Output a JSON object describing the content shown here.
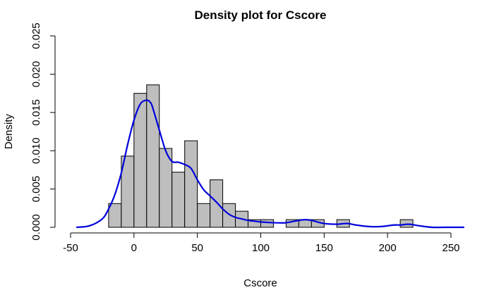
{
  "chart_data": {
    "type": "histogram",
    "title": "Density plot for Cscore",
    "xlabel": "Cscore",
    "ylabel": "Density",
    "xlim": [
      -50,
      260
    ],
    "ylim": [
      0,
      0.025
    ],
    "x_ticks": [
      -50,
      0,
      50,
      100,
      150,
      200,
      250
    ],
    "x_tick_labels": [
      "-50",
      "0",
      "50",
      "100",
      "150",
      "200",
      "250"
    ],
    "y_ticks": [
      0,
      0.005,
      0.01,
      0.015,
      0.02,
      0.025
    ],
    "y_tick_labels": [
      "0.000",
      "0.005",
      "0.010",
      "0.015",
      "0.020",
      "0.025"
    ],
    "bin_width": 10,
    "bins": [
      {
        "x0": -20,
        "x1": -10,
        "density": 0.0031
      },
      {
        "x0": -10,
        "x1": 0,
        "density": 0.0093
      },
      {
        "x0": 0,
        "x1": 10,
        "density": 0.0175
      },
      {
        "x0": 10,
        "x1": 20,
        "density": 0.0186
      },
      {
        "x0": 20,
        "x1": 30,
        "density": 0.0103
      },
      {
        "x0": 30,
        "x1": 40,
        "density": 0.0072
      },
      {
        "x0": 40,
        "x1": 50,
        "density": 0.0113
      },
      {
        "x0": 50,
        "x1": 60,
        "density": 0.0031
      },
      {
        "x0": 60,
        "x1": 70,
        "density": 0.0062
      },
      {
        "x0": 70,
        "x1": 80,
        "density": 0.0031
      },
      {
        "x0": 80,
        "x1": 90,
        "density": 0.0021
      },
      {
        "x0": 90,
        "x1": 100,
        "density": 0.001
      },
      {
        "x0": 100,
        "x1": 110,
        "density": 0.001
      },
      {
        "x0": 110,
        "x1": 120,
        "density": 0.0
      },
      {
        "x0": 120,
        "x1": 130,
        "density": 0.001
      },
      {
        "x0": 130,
        "x1": 140,
        "density": 0.001
      },
      {
        "x0": 140,
        "x1": 150,
        "density": 0.001
      },
      {
        "x0": 150,
        "x1": 160,
        "density": 0.0
      },
      {
        "x0": 160,
        "x1": 170,
        "density": 0.001
      },
      {
        "x0": 170,
        "x1": 180,
        "density": 0.0
      },
      {
        "x0": 180,
        "x1": 190,
        "density": 0.0
      },
      {
        "x0": 190,
        "x1": 200,
        "density": 0.0
      },
      {
        "x0": 200,
        "x1": 210,
        "density": 0.0
      },
      {
        "x0": 210,
        "x1": 220,
        "density": 0.001
      }
    ],
    "density_curve": {
      "x": [
        -45,
        -35,
        -25,
        -20,
        -15,
        -10,
        -5,
        0,
        5,
        10,
        13,
        15,
        20,
        25,
        30,
        35,
        40,
        45,
        50,
        55,
        60,
        65,
        70,
        75,
        80,
        85,
        90,
        95,
        100,
        110,
        120,
        130,
        135,
        140,
        150,
        160,
        168,
        175,
        185,
        195,
        205,
        210,
        217,
        225,
        235,
        245,
        260
      ],
      "y": [
        0.0,
        0.0002,
        0.0011,
        0.0024,
        0.0043,
        0.0071,
        0.0108,
        0.014,
        0.0161,
        0.0166,
        0.0163,
        0.0155,
        0.0127,
        0.01,
        0.0086,
        0.0085,
        0.0082,
        0.0077,
        0.0062,
        0.0049,
        0.0041,
        0.0033,
        0.0024,
        0.0017,
        0.0013,
        0.0011,
        0.0009,
        0.0008,
        0.0007,
        0.0006,
        0.0006,
        0.0009,
        0.001,
        0.0009,
        0.0005,
        0.0004,
        0.0005,
        0.0003,
        0.0001,
        0.0001,
        0.0003,
        0.0003,
        0.0004,
        0.0002,
        0.0,
        0.0,
        0.0
      ]
    },
    "colors": {
      "bar_fill": "#bebebe",
      "bar_stroke": "#000000",
      "curve": "#0000dd"
    },
    "grid": false,
    "legend": "none"
  }
}
